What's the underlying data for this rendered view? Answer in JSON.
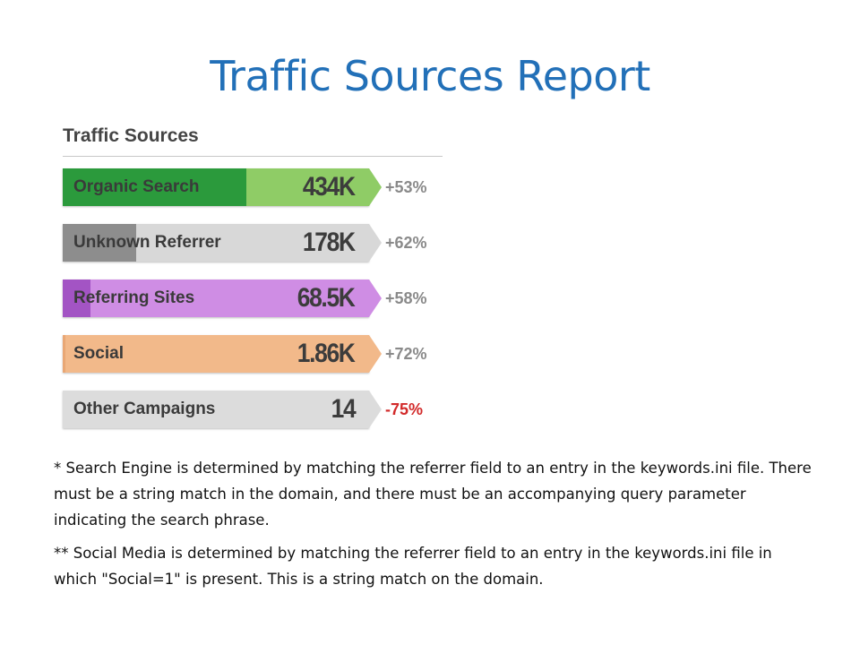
{
  "title": "Traffic Sources Report",
  "panel": {
    "heading": "Traffic Sources",
    "rows": [
      {
        "label": "Organic Search",
        "value": "434K",
        "change": "+53%",
        "negative": false,
        "dark_color": "#2b9a3c",
        "light_color": "#8fcc66",
        "arrow_color": "#8fcc66",
        "fill_fraction": 0.6
      },
      {
        "label": "Unknown Referrer",
        "value": "178K",
        "change": "+62%",
        "negative": false,
        "dark_color": "#8d8d8d",
        "light_color": "#d8d8d8",
        "arrow_color": "#d8d8d8",
        "fill_fraction": 0.24
      },
      {
        "label": "Referring Sites",
        "value": "68.5K",
        "change": "+58%",
        "negative": false,
        "dark_color": "#a354c4",
        "light_color": "#cf8de4",
        "arrow_color": "#cf8de4",
        "fill_fraction": 0.09
      },
      {
        "label": "Social",
        "value": "1.86K",
        "change": "+72%",
        "negative": false,
        "dark_color": "#e9a775",
        "light_color": "#f2b98a",
        "arrow_color": "#f2b98a",
        "fill_fraction": 0.01
      },
      {
        "label": "Other Campaigns",
        "value": "14",
        "change": "-75%",
        "negative": true,
        "dark_color": "#d0d0d0",
        "light_color": "#dcdcdc",
        "arrow_color": "#dcdcdc",
        "fill_fraction": 0.0
      }
    ]
  },
  "notes": [
    "* Search Engine is determined by matching the referrer field to an entry in the keywords.ini file.  There must be a string match in the domain, and there must be an accompanying query parameter indicating the search phrase.",
    "** Social Media is determined by matching the referrer field to an entry in the keywords.ini file in which \"Social=1\" is present.  This is a string match on the domain."
  ]
}
